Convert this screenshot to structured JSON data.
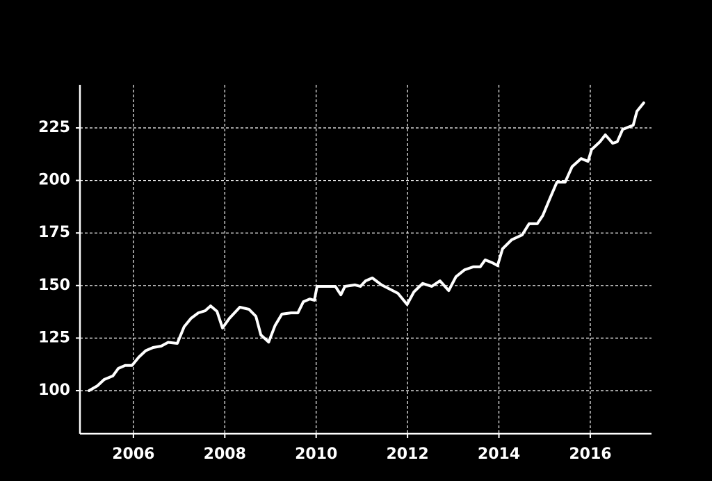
{
  "chart_data": {
    "type": "line",
    "color": "#ffffff",
    "grid": true,
    "x": [
      2005.03,
      2005.21,
      2005.36,
      2005.55,
      2005.67,
      2005.82,
      2005.97,
      2006.12,
      2006.27,
      2006.43,
      2006.61,
      2006.76,
      2006.96,
      2007.11,
      2007.26,
      2007.42,
      2007.57,
      2007.69,
      2007.83,
      2007.95,
      2008.1,
      2008.33,
      2008.53,
      2008.68,
      2008.79,
      2008.96,
      2009.1,
      2009.25,
      2009.45,
      2009.6,
      2009.72,
      2009.86,
      2009.96,
      2010.02,
      2010.24,
      2010.42,
      2010.54,
      2010.63,
      2010.85,
      2010.97,
      2011.08,
      2011.23,
      2011.43,
      2011.61,
      2011.79,
      2011.99,
      2012.14,
      2012.33,
      2012.53,
      2012.71,
      2012.9,
      2013.06,
      2013.25,
      2013.44,
      2013.59,
      2013.7,
      2013.86,
      2013.97,
      2014.08,
      2014.28,
      2014.51,
      2014.66,
      2014.84,
      2014.96,
      2015.12,
      2015.27,
      2015.45,
      2015.6,
      2015.8,
      2015.95,
      2016.03,
      2016.21,
      2016.33,
      2016.49,
      2016.59,
      2016.71,
      2016.94,
      2017.02,
      2017.17
    ],
    "values": [
      100,
      102.3,
      105.3,
      107,
      110.6,
      112,
      112,
      116,
      119,
      120.5,
      121.2,
      123,
      122.5,
      130.4,
      134.4,
      137,
      138,
      140.3,
      137.7,
      129.8,
      134.4,
      139.7,
      138.7,
      135.4,
      126.5,
      123.1,
      131,
      136.4,
      137,
      137,
      142.3,
      143.6,
      143,
      149.6,
      149.6,
      149.6,
      145.6,
      149.6,
      150.3,
      149.6,
      152.2,
      153.6,
      150.3,
      148.3,
      146.3,
      141,
      147,
      151,
      149.6,
      152.2,
      147.6,
      154.2,
      157.5,
      158.9,
      158.9,
      162.2,
      160.8,
      159.5,
      167.5,
      171.8,
      174.1,
      179.4,
      179.4,
      183.3,
      191.6,
      199.2,
      199.2,
      206.5,
      210.4,
      209.1,
      214.7,
      218.4,
      221.7,
      217.7,
      218.4,
      224.3,
      226.3,
      232.9,
      236.9
    ],
    "xlim": [
      2004.83,
      2017.34
    ],
    "xticks": [
      2006,
      2008,
      2010,
      2012,
      2014,
      2016
    ],
    "ylim": [
      79.5,
      245.5
    ],
    "yticks": [
      100,
      125,
      150,
      175,
      200,
      225
    ]
  }
}
